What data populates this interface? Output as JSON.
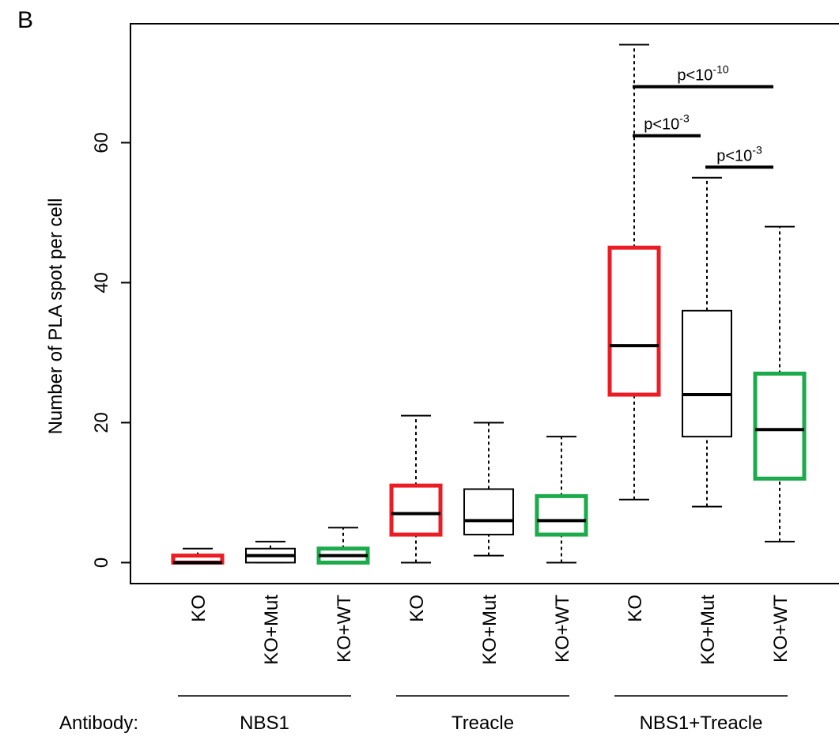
{
  "chart_data": {
    "type": "box",
    "panel_label": "B",
    "ylabel": "Number of PLA spot per cell",
    "group_axis_label": "Antibody:",
    "ylim": [
      -3,
      77
    ],
    "yticks": [
      0,
      20,
      40,
      60
    ],
    "groups": [
      {
        "name": "NBS1",
        "boxes": [
          {
            "label": "KO",
            "color": "#ec1c24",
            "min": 0,
            "q1": 0,
            "median": 0,
            "q3": 1,
            "max": 2
          },
          {
            "label": "KO+Mut",
            "color": "#000000",
            "min": 0,
            "q1": 0,
            "median": 1,
            "q3": 2,
            "max": 3
          },
          {
            "label": "KO+WT",
            "color": "#1bab4b",
            "min": 0,
            "q1": 0,
            "median": 1,
            "q3": 2,
            "max": 5
          }
        ]
      },
      {
        "name": "Treacle",
        "boxes": [
          {
            "label": "KO",
            "color": "#ec1c24",
            "min": 0,
            "q1": 4,
            "median": 7,
            "q3": 11,
            "max": 21
          },
          {
            "label": "KO+Mut",
            "color": "#000000",
            "min": 1,
            "q1": 4,
            "median": 6,
            "q3": 10.5,
            "max": 20
          },
          {
            "label": "KO+WT",
            "color": "#1bab4b",
            "min": 0,
            "q1": 4,
            "median": 6,
            "q3": 9.5,
            "max": 18
          }
        ]
      },
      {
        "name": "NBS1+Treacle",
        "boxes": [
          {
            "label": "KO",
            "color": "#ec1c24",
            "min": 9,
            "q1": 24,
            "median": 31,
            "q3": 45,
            "max": 74
          },
          {
            "label": "KO+Mut",
            "color": "#000000",
            "min": 8,
            "q1": 18,
            "median": 24,
            "q3": 36,
            "max": 55
          },
          {
            "label": "KO+WT",
            "color": "#1bab4b",
            "min": 3,
            "q1": 12,
            "median": 19,
            "q3": 27,
            "max": 48
          }
        ]
      }
    ],
    "annotations": [
      {
        "text": "p<10",
        "sup": "-10",
        "y": 68
      },
      {
        "text": "p<10",
        "sup": "-3",
        "y": 61
      },
      {
        "text": "p<10",
        "sup": "-3",
        "y": 56.5
      }
    ]
  }
}
